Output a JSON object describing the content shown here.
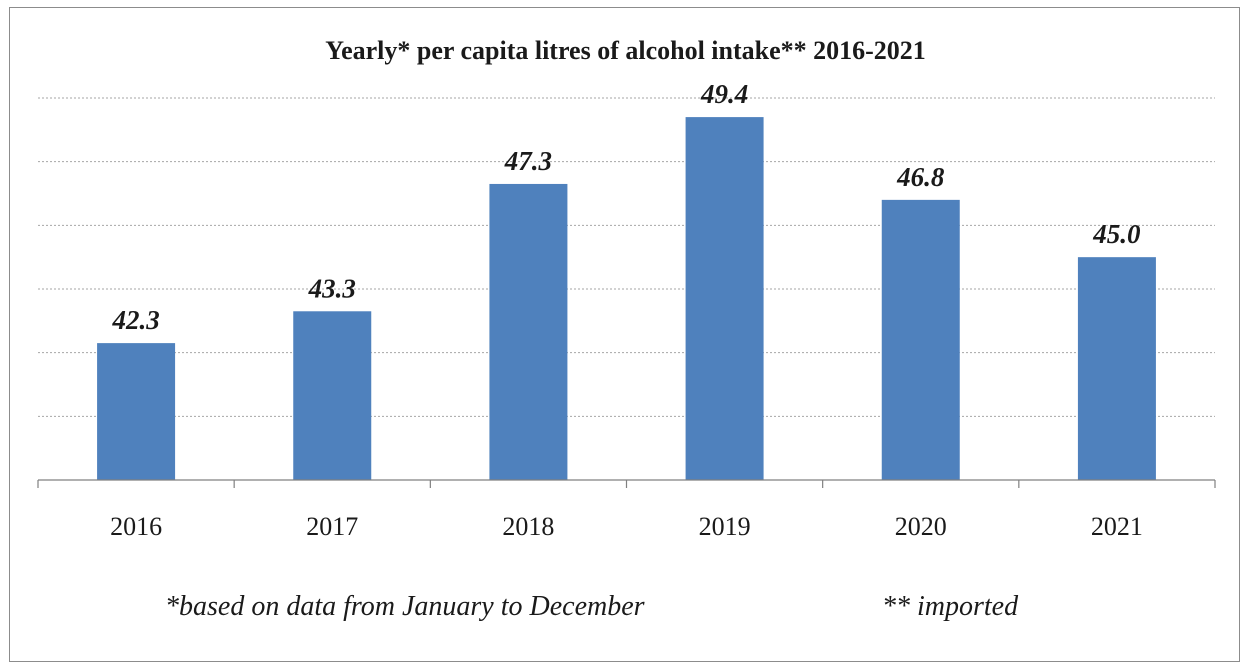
{
  "chart_data": {
    "type": "bar",
    "title": "Yearly* per capita litres of alcohol intake** 2016-2021",
    "categories": [
      "2016",
      "2017",
      "2018",
      "2019",
      "2020",
      "2021"
    ],
    "values": [
      42.3,
      43.3,
      47.3,
      49.4,
      46.8,
      45.0
    ],
    "data_labels": [
      "42.3",
      "43.3",
      "47.3",
      "49.4",
      "46.8",
      "45.0"
    ],
    "xlabel": "",
    "ylabel": "",
    "ylim": [
      38.0,
      50.0
    ],
    "grid": true,
    "legend": "none",
    "bar_color": "#4f81bd"
  },
  "footnotes": {
    "note1": "*based on data from January to December",
    "note2": "** imported"
  }
}
